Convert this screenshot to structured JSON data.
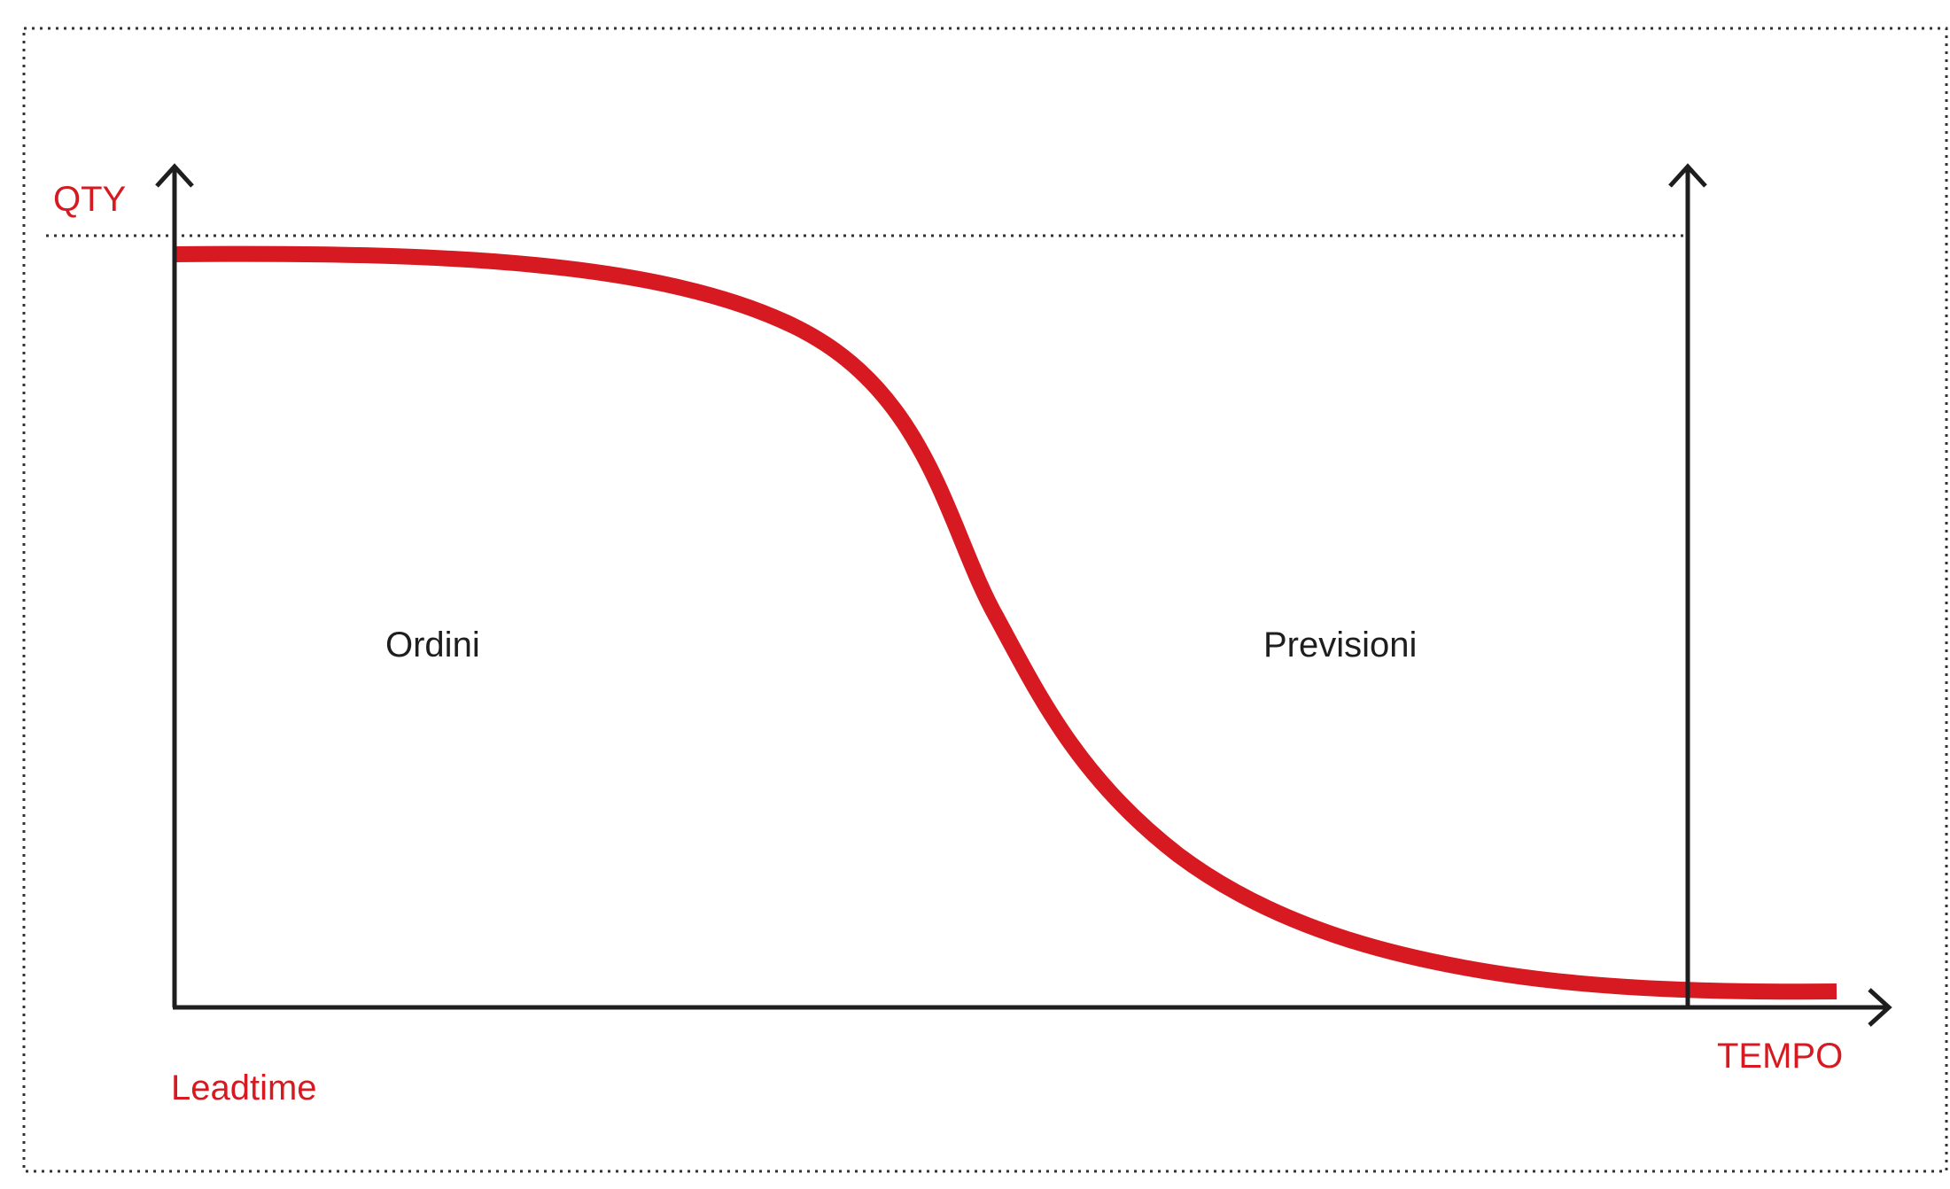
{
  "labels": {
    "y_axis": "QTY",
    "x_axis": "TEMPO",
    "leadtime": "Leadtime",
    "region_left": "Ordini",
    "region_right": "Previsioni"
  },
  "colors": {
    "curve": "#d71a21",
    "axes": "#1e1e1e",
    "accent_text": "#d71a21",
    "body_text": "#1e1e1e",
    "dotted_frame": "#333333"
  }
}
